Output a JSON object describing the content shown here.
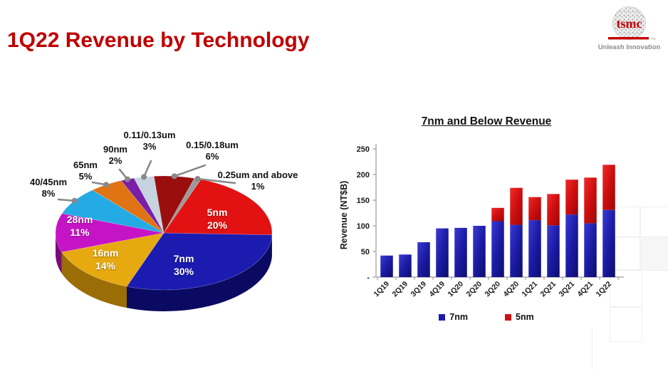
{
  "slide": {
    "title": "1Q22 Revenue by Technology"
  },
  "logo": {
    "brand": "tsmc",
    "trademark": "TM",
    "tagline": "Unleash Innovation",
    "brand_color": "#c40000"
  },
  "chart_data": [
    {
      "id": "revenue-by-technology-pie",
      "type": "pie",
      "unit": "%",
      "slices": [
        {
          "label": "5nm",
          "pct": 20,
          "color": "#e31212",
          "dark": "#8a0808",
          "placement": "inside"
        },
        {
          "label": "7nm",
          "pct": 30,
          "color": "#1b1bb0",
          "dark": "#0a0a62",
          "placement": "inside"
        },
        {
          "label": "16nm",
          "pct": 14,
          "color": "#e6a90f",
          "dark": "#9a6d06",
          "placement": "inside"
        },
        {
          "label": "28nm",
          "pct": 11,
          "color": "#c514c5",
          "dark": "#7c0a7c",
          "placement": "inside"
        },
        {
          "label": "40/45nm",
          "pct": 8,
          "color": "#24aae4",
          "dark": "#147ba6",
          "placement": "callout"
        },
        {
          "label": "65nm",
          "pct": 5,
          "color": "#e07314",
          "dark": "#92480a",
          "placement": "callout"
        },
        {
          "label": "90nm",
          "pct": 2,
          "color": "#7a1fa8",
          "dark": "#4a1168",
          "placement": "callout"
        },
        {
          "label": "0.11/0.13um",
          "pct": 3,
          "color": "#c6d4e0",
          "dark": "#8a98a6",
          "placement": "callout"
        },
        {
          "label": "0.15/0.18um",
          "pct": 6,
          "color": "#9a0e0e",
          "dark": "#5c0606",
          "placement": "callout"
        },
        {
          "label": "0.25um and above",
          "pct": 1,
          "color": "#9a9a9a",
          "dark": "#6a6a6a",
          "placement": "callout"
        }
      ]
    },
    {
      "id": "7nm-and-below-revenue",
      "type": "stacked-bar",
      "title": "7nm and Below Revenue",
      "ylabel": "Revenue (NT$B)",
      "ylim": [
        0,
        250
      ],
      "ytick_step": 50,
      "zero_tick_label": "-",
      "grid": false,
      "legend_position": "bottom",
      "categories": [
        "1Q19",
        "2Q19",
        "3Q19",
        "4Q19",
        "1Q20",
        "2Q20",
        "3Q20",
        "4Q20",
        "1Q21",
        "2Q21",
        "3Q21",
        "4Q21",
        "1Q22"
      ],
      "series": [
        {
          "name": "7nm",
          "color": "#1b1bb0",
          "values": [
            42,
            44,
            68,
            95,
            96,
            100,
            109,
            102,
            111,
            101,
            122,
            105,
            131
          ]
        },
        {
          "name": "5nm",
          "color": "#d11010",
          "values": [
            0,
            0,
            0,
            0,
            0,
            0,
            26,
            72,
            45,
            61,
            68,
            89,
            88
          ]
        }
      ]
    }
  ]
}
